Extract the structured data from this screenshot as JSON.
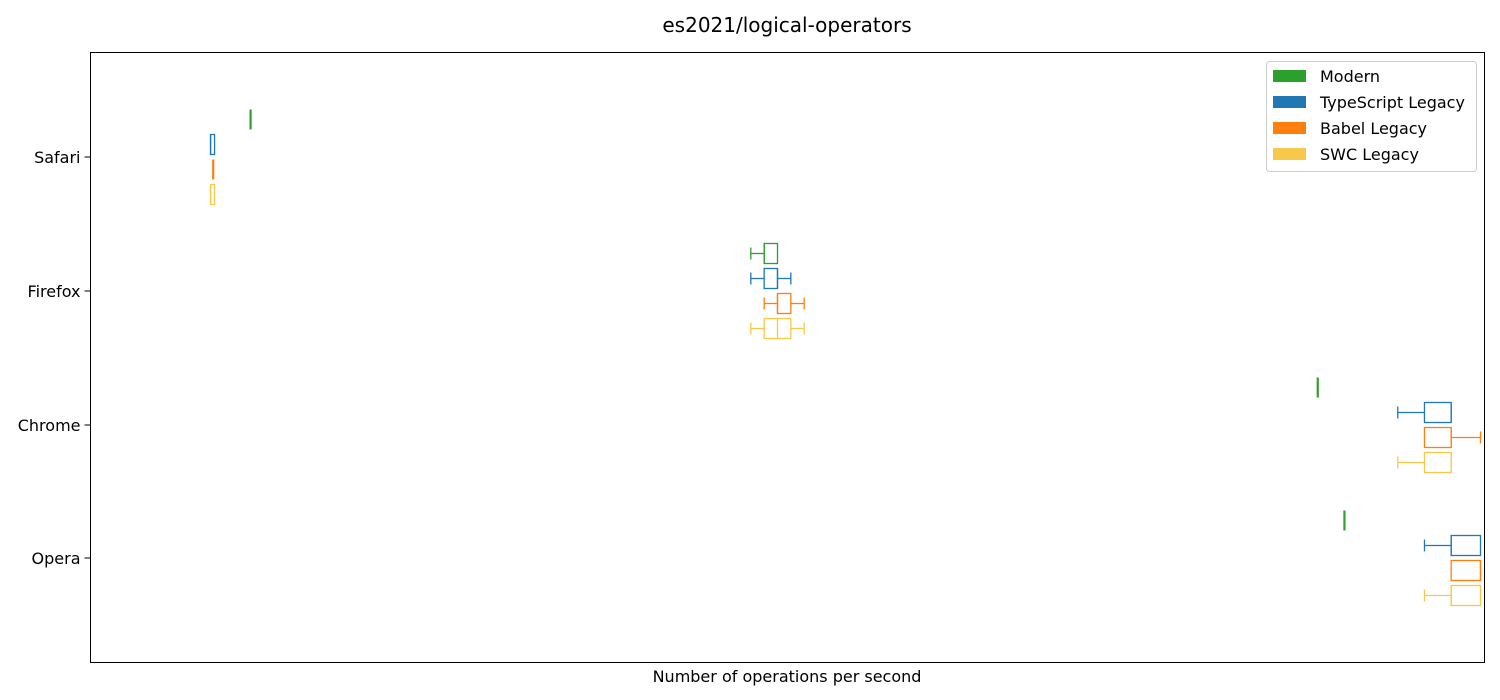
{
  "chart_data": {
    "type": "boxplot",
    "orientation": "horizontal",
    "title": "es2021/logical-operators",
    "xlabel": "Number of operations per second",
    "ylabel": "",
    "x_ticks_visible": false,
    "xlim": [
      -4.5,
      100
    ],
    "grid": false,
    "legend_position": "top-right",
    "categories": [
      "Safari",
      "Firefox",
      "Chrome",
      "Opera"
    ],
    "series": [
      {
        "name": "Modern",
        "color": "#2ca02c",
        "boxes": [
          {
            "category": "Safari",
            "whislo": 7.5,
            "q1": 7.5,
            "med": 7.5,
            "q3": 7.5,
            "whishi": 7.5
          },
          {
            "category": "Firefox",
            "whislo": 45.0,
            "q1": 46.0,
            "med": 46.0,
            "q3": 47.0,
            "whishi": 47.0
          },
          {
            "category": "Chrome",
            "whislo": 87.5,
            "q1": 87.5,
            "med": 87.5,
            "q3": 87.5,
            "whishi": 87.5
          },
          {
            "category": "Opera",
            "whislo": 89.5,
            "q1": 89.5,
            "med": 89.5,
            "q3": 89.5,
            "whishi": 89.5
          }
        ]
      },
      {
        "name": "TypeScript Legacy",
        "color": "#1f77b4",
        "boxes": [
          {
            "category": "Safari",
            "whislo": 4.5,
            "q1": 4.5,
            "med": 4.5,
            "q3": 4.8,
            "whishi": 4.8
          },
          {
            "category": "Firefox",
            "whislo": 45.0,
            "q1": 46.0,
            "med": 47.0,
            "q3": 47.0,
            "whishi": 48.0
          },
          {
            "category": "Chrome",
            "whislo": 93.5,
            "q1": 95.5,
            "med": 97.5,
            "q3": 97.5,
            "whishi": 97.5
          },
          {
            "category": "Opera",
            "whislo": 95.5,
            "q1": 97.5,
            "med": 97.5,
            "q3": 99.7,
            "whishi": 99.7
          }
        ]
      },
      {
        "name": "Babel Legacy",
        "color": "#ff7f0e",
        "boxes": [
          {
            "category": "Safari",
            "whislo": 4.7,
            "q1": 4.7,
            "med": 4.7,
            "q3": 4.7,
            "whishi": 4.7
          },
          {
            "category": "Firefox",
            "whislo": 46.0,
            "q1": 47.0,
            "med": 47.0,
            "q3": 48.0,
            "whishi": 49.0
          },
          {
            "category": "Chrome",
            "whislo": 95.5,
            "q1": 95.5,
            "med": 97.5,
            "q3": 97.5,
            "whishi": 99.7
          },
          {
            "category": "Opera",
            "whislo": 97.5,
            "q1": 97.5,
            "med": 99.7,
            "q3": 99.7,
            "whishi": 99.7
          }
        ]
      },
      {
        "name": "SWC Legacy",
        "color": "#f7c84a",
        "boxes": [
          {
            "category": "Safari",
            "whislo": 4.5,
            "q1": 4.5,
            "med": 4.5,
            "q3": 4.8,
            "whishi": 4.8
          },
          {
            "category": "Firefox",
            "whislo": 45.0,
            "q1": 46.0,
            "med": 47.0,
            "q3": 48.0,
            "whishi": 49.0
          },
          {
            "category": "Chrome",
            "whislo": 93.5,
            "q1": 95.5,
            "med": 97.5,
            "q3": 97.5,
            "whishi": 97.5
          },
          {
            "category": "Opera",
            "whislo": 95.5,
            "q1": 97.5,
            "med": 97.5,
            "q3": 99.7,
            "whishi": 99.7
          }
        ]
      }
    ]
  }
}
